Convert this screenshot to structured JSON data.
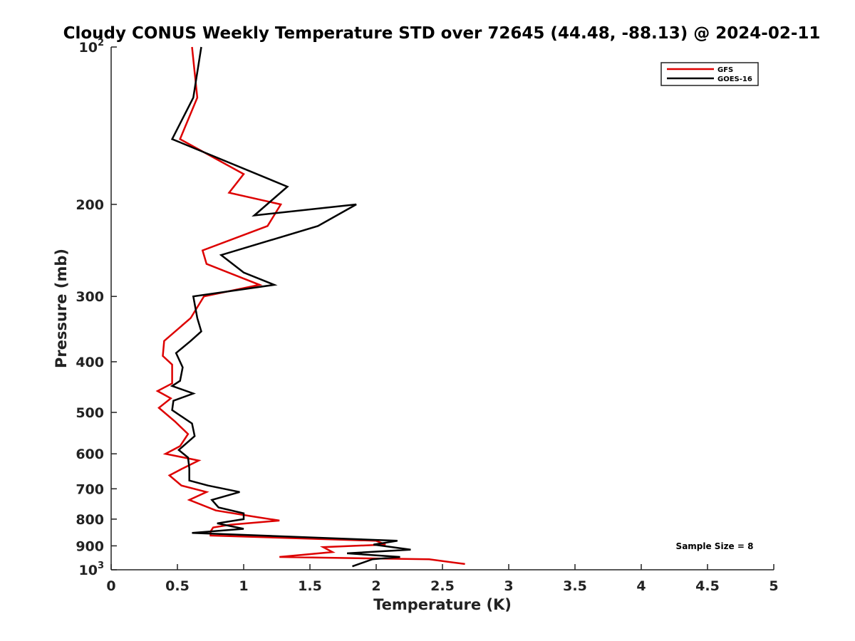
{
  "chart_data": {
    "type": "line",
    "title": "Cloudy CONUS Weekly Temperature STD over 72645 (44.48, -88.13) @ 2024-02-11",
    "xlabel": "Temperature (K)",
    "ylabel": "Pressure (mb)",
    "xlim": [
      0,
      5
    ],
    "ylim": [
      1000,
      100
    ],
    "yscale": "log",
    "y_inverted": true,
    "grid": false,
    "legend_position": "top-right",
    "x_ticks": [
      "0",
      "0.5",
      "1",
      "1.5",
      "2",
      "2.5",
      "3",
      "3.5",
      "4",
      "4.5",
      "5"
    ],
    "y_ticks": [
      {
        "value": 100,
        "base": "10",
        "exp": "2"
      },
      {
        "value": 200,
        "label": "200"
      },
      {
        "value": 300,
        "label": "300"
      },
      {
        "value": 400,
        "label": "400"
      },
      {
        "value": 500,
        "label": "500"
      },
      {
        "value": 600,
        "label": "600"
      },
      {
        "value": 700,
        "label": "700"
      },
      {
        "value": 800,
        "label": "800"
      },
      {
        "value": 900,
        "label": "900"
      },
      {
        "value": 1000,
        "base": "10",
        "exp": "3"
      }
    ],
    "annotation": "Sample Size = 8",
    "series": [
      {
        "name": "GFS",
        "color": "#dd0000",
        "points": [
          [
            0.61,
            100
          ],
          [
            0.65,
            125
          ],
          [
            0.52,
            150
          ],
          [
            1.0,
            175
          ],
          [
            0.89,
            190
          ],
          [
            1.28,
            200
          ],
          [
            1.18,
            220
          ],
          [
            0.69,
            245
          ],
          [
            0.72,
            260
          ],
          [
            1.12,
            285
          ],
          [
            0.7,
            300
          ],
          [
            0.6,
            330
          ],
          [
            0.4,
            365
          ],
          [
            0.39,
            390
          ],
          [
            0.46,
            405
          ],
          [
            0.46,
            440
          ],
          [
            0.35,
            455
          ],
          [
            0.45,
            470
          ],
          [
            0.36,
            490
          ],
          [
            0.48,
            520
          ],
          [
            0.58,
            550
          ],
          [
            0.52,
            580
          ],
          [
            0.41,
            600
          ],
          [
            0.66,
            618
          ],
          [
            0.54,
            640
          ],
          [
            0.44,
            660
          ],
          [
            0.53,
            690
          ],
          [
            0.72,
            710
          ],
          [
            0.59,
            735
          ],
          [
            0.79,
            770
          ],
          [
            1.06,
            790
          ],
          [
            1.27,
            805
          ],
          [
            0.9,
            820
          ],
          [
            0.77,
            830
          ],
          [
            0.75,
            845
          ],
          [
            0.75,
            860
          ],
          [
            2.0,
            880
          ],
          [
            2.07,
            895
          ],
          [
            1.6,
            905
          ],
          [
            1.67,
            925
          ],
          [
            1.27,
            945
          ],
          [
            2.4,
            955
          ],
          [
            2.67,
            975
          ]
        ]
      },
      {
        "name": "GOES-16",
        "color": "#000000",
        "points": [
          [
            0.68,
            100
          ],
          [
            0.62,
            125
          ],
          [
            0.46,
            150
          ],
          [
            1.33,
            185
          ],
          [
            1.08,
            210
          ],
          [
            1.85,
            200
          ],
          [
            1.56,
            220
          ],
          [
            0.83,
            250
          ],
          [
            1.0,
            270
          ],
          [
            1.23,
            285
          ],
          [
            0.62,
            300
          ],
          [
            0.65,
            330
          ],
          [
            0.68,
            350
          ],
          [
            0.6,
            365
          ],
          [
            0.49,
            385
          ],
          [
            0.54,
            410
          ],
          [
            0.52,
            435
          ],
          [
            0.46,
            445
          ],
          [
            0.62,
            460
          ],
          [
            0.47,
            475
          ],
          [
            0.46,
            495
          ],
          [
            0.61,
            525
          ],
          [
            0.63,
            555
          ],
          [
            0.51,
            590
          ],
          [
            0.58,
            610
          ],
          [
            0.59,
            640
          ],
          [
            0.59,
            675
          ],
          [
            0.73,
            690
          ],
          [
            0.97,
            710
          ],
          [
            0.76,
            735
          ],
          [
            0.81,
            760
          ],
          [
            1.0,
            780
          ],
          [
            1.0,
            800
          ],
          [
            0.8,
            815
          ],
          [
            1.0,
            835
          ],
          [
            0.61,
            850
          ],
          [
            2.16,
            880
          ],
          [
            1.98,
            895
          ],
          [
            2.26,
            915
          ],
          [
            1.78,
            930
          ],
          [
            2.18,
            945
          ],
          [
            1.97,
            955
          ],
          [
            1.82,
            985
          ]
        ]
      }
    ]
  }
}
